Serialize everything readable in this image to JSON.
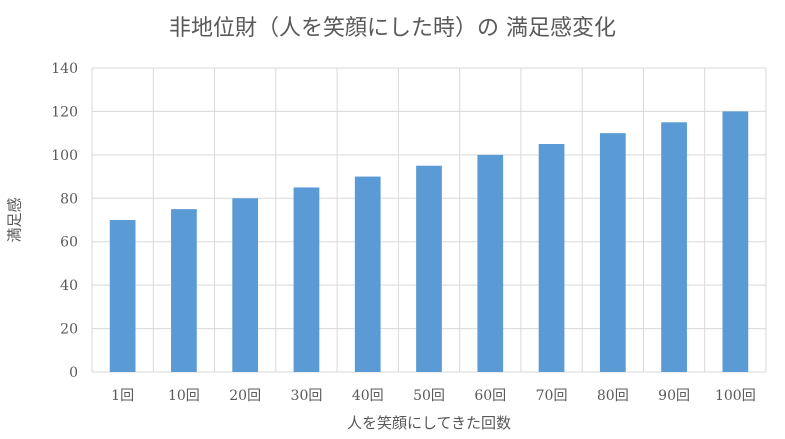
{
  "chart_data": {
    "type": "bar",
    "title": "非地位財（人を笑顔にした時）の 満足感変化",
    "xlabel": "人を笑顔にしてきた回数",
    "ylabel": "満足感",
    "categories": [
      "1回",
      "10回",
      "20回",
      "30回",
      "40回",
      "50回",
      "60回",
      "70回",
      "80回",
      "90回",
      "100回"
    ],
    "values": [
      70,
      75,
      80,
      85,
      90,
      95,
      100,
      105,
      110,
      115,
      120
    ],
    "ylim": [
      0,
      140
    ],
    "yticks": [
      0,
      20,
      40,
      60,
      80,
      100,
      120,
      140
    ],
    "grid": true,
    "legend": "none",
    "bar_color": "#5b9bd5",
    "grid_color": "#d9d9d9"
  }
}
